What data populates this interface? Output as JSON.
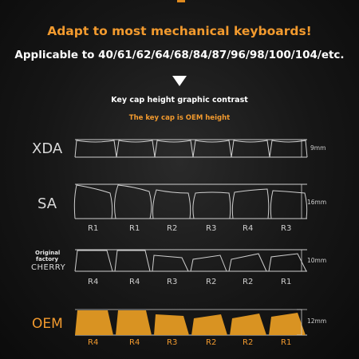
{
  "headline": "Adapt to most mechanical keyboards!",
  "applicable": "Applicable to 40/61/62/64/68/84/87/96/98/100/104/etc.",
  "contrast_title": "Key cap height graphic contrast",
  "oem_note": "The key cap is OEM height",
  "icons": {
    "arrow": "down-triangle-icon"
  },
  "colors": {
    "accent": "#f29a2e",
    "oem_fill": "#d99322",
    "line": "#cfcfcf"
  },
  "profiles": [
    {
      "id": "xda",
      "label": "XDA",
      "height": "9mm",
      "rows": []
    },
    {
      "id": "sa",
      "label": "SA",
      "height": "16mm",
      "rows": [
        "R1",
        "R1",
        "R2",
        "R3",
        "R4",
        "R3"
      ]
    },
    {
      "id": "cherry",
      "label_small": "Original factory",
      "label": "CHERRY",
      "height": "10mm",
      "rows": [
        "R4",
        "R4",
        "R3",
        "R2",
        "R2",
        "R1"
      ]
    },
    {
      "id": "oem",
      "label": "OEM",
      "height": "12mm",
      "rows": [
        "R4",
        "R4",
        "R3",
        "R2",
        "R2",
        "R1"
      ]
    }
  ]
}
